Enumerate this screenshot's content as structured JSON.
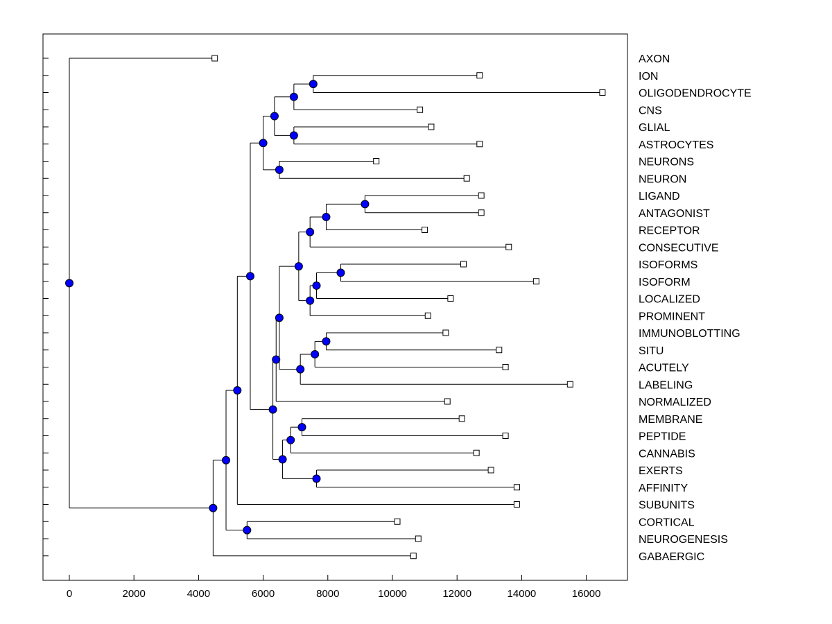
{
  "chart_data": {
    "type": "dendrogram",
    "orientation": "horizontal",
    "xlim": [
      -800,
      17300
    ],
    "xticks": [
      0,
      2000,
      4000,
      6000,
      8000,
      10000,
      12000,
      14000,
      16000
    ],
    "xtick_labels": [
      "0",
      "2000",
      "4000",
      "6000",
      "8000",
      "10000",
      "12000",
      "14000",
      "16000"
    ],
    "leaves": [
      {
        "label": "AXON",
        "value": 4500
      },
      {
        "label": "ION",
        "value": 12700
      },
      {
        "label": "OLIGODENDROCYTE",
        "value": 16500
      },
      {
        "label": "CNS",
        "value": 10850
      },
      {
        "label": "GLIAL",
        "value": 11200
      },
      {
        "label": "ASTROCYTES",
        "value": 12700
      },
      {
        "label": "NEURONS",
        "value": 9500
      },
      {
        "label": "NEURON",
        "value": 12300
      },
      {
        "label": "LIGAND",
        "value": 12750
      },
      {
        "label": "ANTAGONIST",
        "value": 12750
      },
      {
        "label": "RECEPTOR",
        "value": 11000
      },
      {
        "label": "CONSECUTIVE",
        "value": 13600
      },
      {
        "label": "ISOFORMS",
        "value": 12200
      },
      {
        "label": "ISOFORM",
        "value": 14450
      },
      {
        "label": "LOCALIZED",
        "value": 11800
      },
      {
        "label": "PROMINENT",
        "value": 11100
      },
      {
        "label": "IMMUNOBLOTTING",
        "value": 11650
      },
      {
        "label": "SITU",
        "value": 13300
      },
      {
        "label": "ACUTELY",
        "value": 13500
      },
      {
        "label": "LABELING",
        "value": 15500
      },
      {
        "label": "NORMALIZED",
        "value": 11700
      },
      {
        "label": "MEMBRANE",
        "value": 12150
      },
      {
        "label": "PEPTIDE",
        "value": 13500
      },
      {
        "label": "CANNABIS",
        "value": 12600
      },
      {
        "label": "EXERTS",
        "value": 13050
      },
      {
        "label": "AFFINITY",
        "value": 13850
      },
      {
        "label": "SUBUNITS",
        "value": 13850
      },
      {
        "label": "CORTICAL",
        "value": 10150
      },
      {
        "label": "NEUROGENESIS",
        "value": 10800
      },
      {
        "label": "GABAERGIC",
        "value": 10650
      }
    ],
    "merges": [
      {
        "id": "m1",
        "children": [
          "ION",
          "OLIGODENDROCYTE"
        ],
        "value": 7550
      },
      {
        "id": "m2",
        "children": [
          "m1",
          "CNS"
        ],
        "value": 6950
      },
      {
        "id": "m3",
        "children": [
          "GLIAL",
          "ASTROCYTES"
        ],
        "value": 6950
      },
      {
        "id": "m4",
        "children": [
          "m2",
          "m3"
        ],
        "value": 6350
      },
      {
        "id": "m5",
        "children": [
          "NEURONS",
          "NEURON"
        ],
        "value": 6500
      },
      {
        "id": "m6",
        "children": [
          "m4",
          "m5"
        ],
        "value": 6000
      },
      {
        "id": "m7",
        "children": [
          "LIGAND",
          "ANTAGONIST"
        ],
        "value": 9150
      },
      {
        "id": "m8",
        "children": [
          "m7",
          "RECEPTOR"
        ],
        "value": 7950
      },
      {
        "id": "m9",
        "children": [
          "m8",
          "CONSECUTIVE"
        ],
        "value": 7450
      },
      {
        "id": "m10",
        "children": [
          "ISOFORMS",
          "ISOFORM"
        ],
        "value": 8400
      },
      {
        "id": "m11",
        "children": [
          "m10",
          "LOCALIZED"
        ],
        "value": 7650
      },
      {
        "id": "m12",
        "children": [
          "m11",
          "PROMINENT"
        ],
        "value": 7450
      },
      {
        "id": "m13",
        "children": [
          "m9",
          "m12"
        ],
        "value": 7100
      },
      {
        "id": "m14",
        "children": [
          "IMMUNOBLOTTING",
          "SITU"
        ],
        "value": 7950
      },
      {
        "id": "m15",
        "children": [
          "m14",
          "ACUTELY"
        ],
        "value": 7600
      },
      {
        "id": "m16",
        "children": [
          "m15",
          "LABELING"
        ],
        "value": 7150
      },
      {
        "id": "m17",
        "children": [
          "m13",
          "m16"
        ],
        "value": 6500
      },
      {
        "id": "m18",
        "children": [
          "m17",
          "NORMALIZED"
        ],
        "value": 6400
      },
      {
        "id": "m19",
        "children": [
          "MEMBRANE",
          "PEPTIDE"
        ],
        "value": 7200
      },
      {
        "id": "m20",
        "children": [
          "m19",
          "CANNABIS"
        ],
        "value": 6850
      },
      {
        "id": "m21",
        "children": [
          "EXERTS",
          "AFFINITY"
        ],
        "value": 7650
      },
      {
        "id": "m22",
        "children": [
          "m20",
          "m21"
        ],
        "value": 6600
      },
      {
        "id": "m23",
        "children": [
          "m18",
          "m22"
        ],
        "value": 6300
      },
      {
        "id": "m24",
        "children": [
          "m6",
          "m23"
        ],
        "value": 5600
      },
      {
        "id": "m25",
        "children": [
          "m24",
          "SUBUNITS"
        ],
        "value": 5200
      },
      {
        "id": "m26",
        "children": [
          "CORTICAL",
          "NEUROGENESIS"
        ],
        "value": 5500
      },
      {
        "id": "m27",
        "children": [
          "m25",
          "m26"
        ],
        "value": 4850
      },
      {
        "id": "m28",
        "children": [
          "m27",
          "GABAERGIC"
        ],
        "value": 4450
      },
      {
        "id": "m29",
        "children": [
          "AXON",
          "m28"
        ],
        "value": 0
      }
    ],
    "title": "",
    "xlabel": "",
    "ylabel": "",
    "grid": false,
    "colors": {
      "node": "#0000ff",
      "line": "#000000",
      "leaf_fill": "#ffffff"
    }
  }
}
